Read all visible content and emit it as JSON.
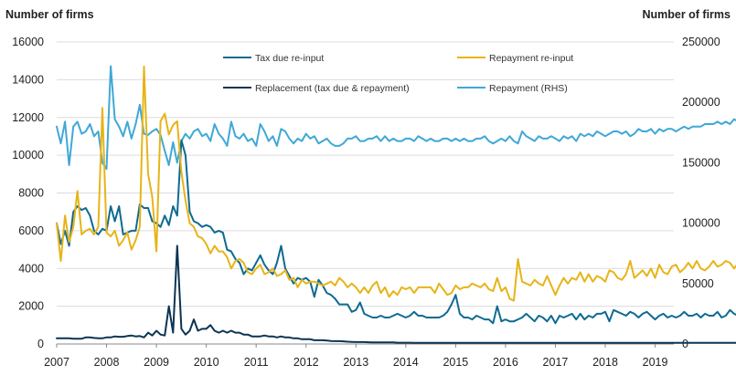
{
  "chart_data": {
    "type": "line",
    "y_left_title": "Number of firms",
    "y_right_title": "Number of firms",
    "y_left_range": [
      0,
      16000
    ],
    "y_right_range": [
      0,
      250000
    ],
    "y_left_ticks": [
      0,
      2000,
      4000,
      6000,
      8000,
      10000,
      12000,
      14000,
      16000
    ],
    "y_right_ticks": [
      0,
      50000,
      100000,
      150000,
      200000,
      250000
    ],
    "y_left_tick_labels": [
      "0",
      "2000",
      "4000",
      "6000",
      "8000",
      "10000",
      "12000",
      "14000",
      "16000"
    ],
    "y_right_tick_labels": [
      "0",
      "50000",
      "100000",
      "150000",
      "200000",
      "250000"
    ],
    "x_range": [
      2007.0,
      2019.375
    ],
    "x_ticks": [
      2007,
      2008,
      2009,
      2010,
      2011,
      2012,
      2013,
      2014,
      2015,
      2016,
      2017,
      2018,
      2019
    ],
    "x_tick_labels": [
      "2007",
      "2008",
      "2009",
      "2010",
      "2011",
      "2012",
      "2013",
      "2014",
      "2015",
      "2016",
      "2017",
      "2018",
      "2019"
    ],
    "x_step": 0.0833333,
    "gridlines": true,
    "series": [
      {
        "name": "Tax due re-input",
        "axis": "left",
        "color": "#0e6a92",
        "values": [
          6400,
          5300,
          6000,
          5200,
          7000,
          7300,
          7100,
          7200,
          6800,
          6000,
          5800,
          6100,
          6000,
          7300,
          6500,
          7300,
          5800,
          5900,
          6000,
          6000,
          7400,
          7200,
          7200,
          6500,
          6400,
          6200,
          6800,
          6300,
          7300,
          6800,
          10800,
          10000,
          7000,
          6500,
          6400,
          6200,
          6300,
          6200,
          5900,
          6000,
          5900,
          5000,
          4900,
          4500,
          4300,
          3700,
          4000,
          3900,
          4300,
          4700,
          4200,
          3900,
          3700,
          4300,
          5200,
          4000,
          3600,
          3200,
          3500,
          3400,
          3500,
          3300,
          2500,
          3400,
          3100,
          2700,
          2600,
          2400,
          2100,
          2100,
          2100,
          1700,
          1800,
          2200,
          1600,
          1500,
          1400,
          1400,
          1500,
          1400,
          1400,
          1500,
          1600,
          1500,
          1400,
          1500,
          1700,
          1500,
          1500,
          1400,
          1400,
          1400,
          1400,
          1500,
          1700,
          2100,
          2600,
          1600,
          1400,
          1400,
          1300,
          1500,
          1400,
          1300,
          1300,
          1100,
          2000,
          1200,
          1300,
          1200,
          1200,
          1300,
          1400,
          1600,
          1400,
          1200,
          1500,
          1400,
          1200,
          1500,
          1100,
          1500,
          1400,
          1500,
          1600,
          1300,
          1600,
          1300,
          1500,
          1400,
          1600,
          1600,
          1700,
          1200,
          1800,
          1700,
          1600,
          1500,
          1700,
          1600,
          1400,
          1600,
          1700,
          1500,
          1300,
          1500,
          1600,
          1400,
          1500,
          1400,
          1500,
          1700,
          1500,
          1500,
          1600,
          1400,
          1600,
          1500,
          1500,
          1700,
          1400,
          1500,
          1800,
          1600,
          1500,
          1500
        ]
      },
      {
        "name": "Repayment re-input",
        "axis": "left",
        "color": "#e7b418",
        "values": [
          6400,
          4400,
          6800,
          5400,
          6200,
          8100,
          5800,
          6000,
          6100,
          5800,
          6200,
          12500,
          5900,
          5700,
          6000,
          5200,
          5500,
          5900,
          5000,
          5500,
          6200,
          14700,
          9000,
          7800,
          4900,
          11800,
          12200,
          11100,
          11600,
          11800,
          9100,
          7600,
          6400,
          6200,
          5700,
          5600,
          5300,
          4800,
          5200,
          4900,
          4900,
          4600,
          4000,
          4400,
          4500,
          4300,
          3800,
          3700,
          4000,
          4200,
          3700,
          3800,
          4000,
          3600,
          3700,
          3900,
          3400,
          3500,
          3000,
          3400,
          3200,
          3300,
          3300,
          3200,
          3100,
          3200,
          3300,
          3100,
          3500,
          3300,
          3000,
          3200,
          3000,
          2700,
          3000,
          2700,
          3100,
          3300,
          2700,
          3000,
          2500,
          2800,
          2600,
          3000,
          2900,
          3000,
          2700,
          3000,
          3000,
          3000,
          3000,
          2700,
          3200,
          2900,
          2600,
          2700,
          3100,
          2900,
          3000,
          3000,
          3200,
          3100,
          3000,
          3200,
          2900,
          2800,
          3500,
          2800,
          3000,
          2400,
          2300,
          4500,
          3300,
          3200,
          3100,
          3400,
          3200,
          3100,
          3600,
          3100,
          2600,
          3100,
          3500,
          3200,
          3500,
          3400,
          3800,
          3300,
          3700,
          3300,
          3600,
          3500,
          3300,
          3900,
          3800,
          3500,
          3400,
          3700,
          4400,
          3500,
          3700,
          3900,
          3600,
          4000,
          3500,
          4200,
          3800,
          3700,
          4100,
          4200,
          3800,
          4000,
          4300,
          4000,
          4400,
          4000,
          3900,
          4100,
          4400,
          4100,
          4200,
          4400,
          4300,
          4000,
          4300,
          4400,
          4200,
          4000,
          4300,
          3900
        ]
      },
      {
        "name": "Replacement (tax due & repayment)",
        "axis": "left",
        "color": "#0b3453",
        "values": [
          300,
          300,
          300,
          300,
          280,
          280,
          280,
          350,
          350,
          320,
          300,
          300,
          350,
          350,
          400,
          380,
          380,
          420,
          450,
          400,
          420,
          350,
          600,
          450,
          700,
          500,
          450,
          2000,
          600,
          5200,
          800,
          500,
          700,
          1300,
          700,
          800,
          800,
          1000,
          700,
          600,
          700,
          600,
          700,
          600,
          600,
          500,
          500,
          400,
          400,
          400,
          450,
          400,
          400,
          350,
          400,
          350,
          350,
          300,
          300,
          250,
          250,
          250,
          200,
          200,
          200,
          180,
          160,
          150,
          150,
          140,
          120,
          110,
          100,
          100,
          100,
          90,
          80,
          80,
          80,
          80,
          80,
          80,
          70,
          70,
          70,
          70,
          60,
          60,
          60,
          60,
          60,
          60,
          60,
          60,
          60,
          60,
          60,
          60,
          60,
          60,
          60,
          60,
          60,
          60,
          60,
          60,
          60,
          60,
          60,
          60,
          60,
          60,
          60,
          60,
          60,
          60,
          60,
          60,
          60,
          60,
          60,
          60,
          60,
          60,
          60,
          60,
          60,
          60,
          60,
          60,
          60,
          60,
          60,
          60,
          60,
          60,
          60,
          60,
          60,
          60,
          60,
          60,
          60,
          60,
          60,
          60,
          60,
          60,
          60,
          60,
          60,
          60,
          60,
          60,
          60,
          60,
          60,
          60,
          60,
          60,
          60,
          60,
          60,
          60,
          60,
          60,
          60,
          60,
          60,
          60
        ]
      },
      {
        "name": "Repayment (RHS)",
        "axis": "right",
        "color": "#3fa8d6",
        "values": [
          180000,
          166000,
          184000,
          148000,
          180000,
          184000,
          174000,
          176000,
          182000,
          172000,
          176000,
          150000,
          145000,
          230000,
          186000,
          180000,
          172000,
          184000,
          170000,
          182000,
          198000,
          174000,
          173000,
          176000,
          178000,
          173000,
          160000,
          148000,
          167000,
          150000,
          168000,
          174000,
          170000,
          176000,
          178000,
          172000,
          174000,
          168000,
          182000,
          174000,
          170000,
          164000,
          184000,
          172000,
          170000,
          174000,
          168000,
          170000,
          164000,
          182000,
          176000,
          168000,
          172000,
          164000,
          178000,
          176000,
          170000,
          166000,
          170000,
          168000,
          174000,
          170000,
          172000,
          166000,
          168000,
          170000,
          166000,
          164000,
          164000,
          166000,
          170000,
          170000,
          172000,
          168000,
          168000,
          170000,
          170000,
          172000,
          168000,
          172000,
          168000,
          170000,
          168000,
          168000,
          170000,
          170000,
          168000,
          172000,
          170000,
          168000,
          170000,
          168000,
          168000,
          170000,
          170000,
          168000,
          170000,
          168000,
          170000,
          168000,
          168000,
          170000,
          170000,
          172000,
          168000,
          166000,
          168000,
          170000,
          168000,
          172000,
          168000,
          166000,
          176000,
          172000,
          170000,
          168000,
          172000,
          170000,
          170000,
          172000,
          170000,
          168000,
          172000,
          170000,
          172000,
          168000,
          174000,
          172000,
          174000,
          172000,
          176000,
          174000,
          172000,
          174000,
          176000,
          176000,
          174000,
          176000,
          172000,
          174000,
          178000,
          176000,
          176000,
          178000,
          174000,
          178000,
          176000,
          178000,
          178000,
          176000,
          178000,
          180000,
          178000,
          180000,
          180000,
          180000,
          182000,
          182000,
          182000,
          184000,
          182000,
          184000,
          182000,
          186000,
          184000,
          182000,
          186000,
          186000,
          184000,
          178000
        ]
      }
    ]
  }
}
